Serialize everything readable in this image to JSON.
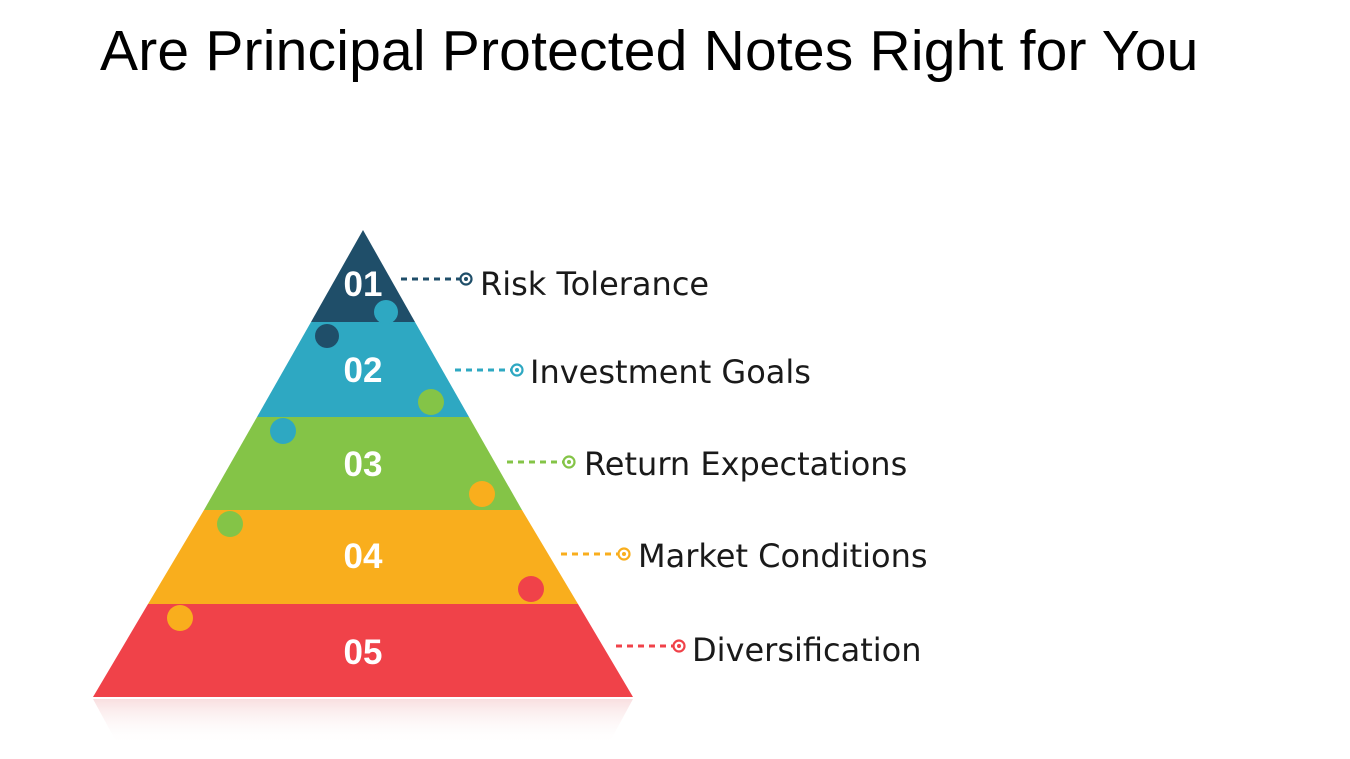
{
  "title": "Are Principal Protected Notes Right for You",
  "tiers": [
    {
      "number": "01",
      "label": "Risk Tolerance",
      "color": "#1f4e69"
    },
    {
      "number": "02",
      "label": "Investment Goals",
      "color": "#2ea8c2"
    },
    {
      "number": "03",
      "label": "Return Expectations",
      "color": "#84c447"
    },
    {
      "number": "04",
      "label": "Market Conditions",
      "color": "#f9ae1d"
    },
    {
      "number": "05",
      "label": "Diversification",
      "color": "#f04249"
    }
  ]
}
